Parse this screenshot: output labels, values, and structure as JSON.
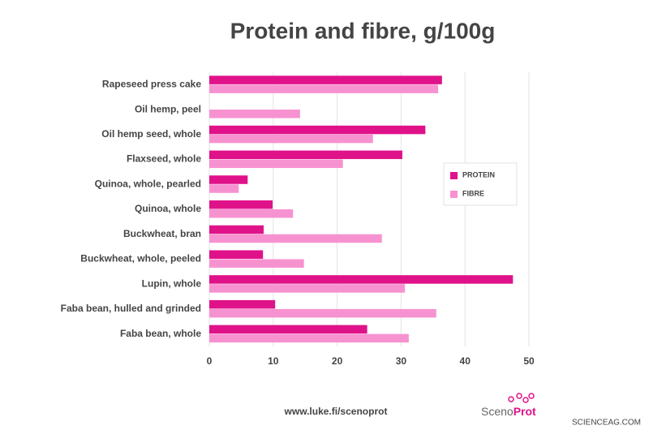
{
  "chart_data": {
    "type": "hbar",
    "title": "Protein and fibre, g/100g",
    "categories": [
      "Rapeseed press cake",
      "Oil hemp, peel",
      "Oil hemp seed, whole",
      "Flaxseed, whole",
      "Quinoa, whole, pearled",
      "Quinoa, whole",
      "Buckwheat, bran",
      "Buckwheat, whole, peeled",
      "Lupin, whole",
      "Faba bean, hulled and grinded",
      "Faba bean, whole"
    ],
    "series": [
      {
        "name": "PROTEIN",
        "color": "#e0128a",
        "values": [
          36.4,
          null,
          33.8,
          30.2,
          6.0,
          9.9,
          8.5,
          8.4,
          47.5,
          10.3,
          24.7
        ]
      },
      {
        "name": "FIBRE",
        "color": "#f792d0",
        "values": [
          35.8,
          14.2,
          25.6,
          20.9,
          4.6,
          13.1,
          27.0,
          14.8,
          30.6,
          35.5,
          31.2
        ]
      }
    ],
    "xlim": [
      0,
      50
    ],
    "xticks": [
      0,
      10,
      20,
      30,
      40,
      50
    ],
    "grid": true,
    "legend": "right"
  },
  "footer": {
    "url": "www.luke.fi/scenoprot",
    "logo": [
      "Sceno",
      "Prot"
    ],
    "watermark": "SCIENCEAG.COM"
  }
}
